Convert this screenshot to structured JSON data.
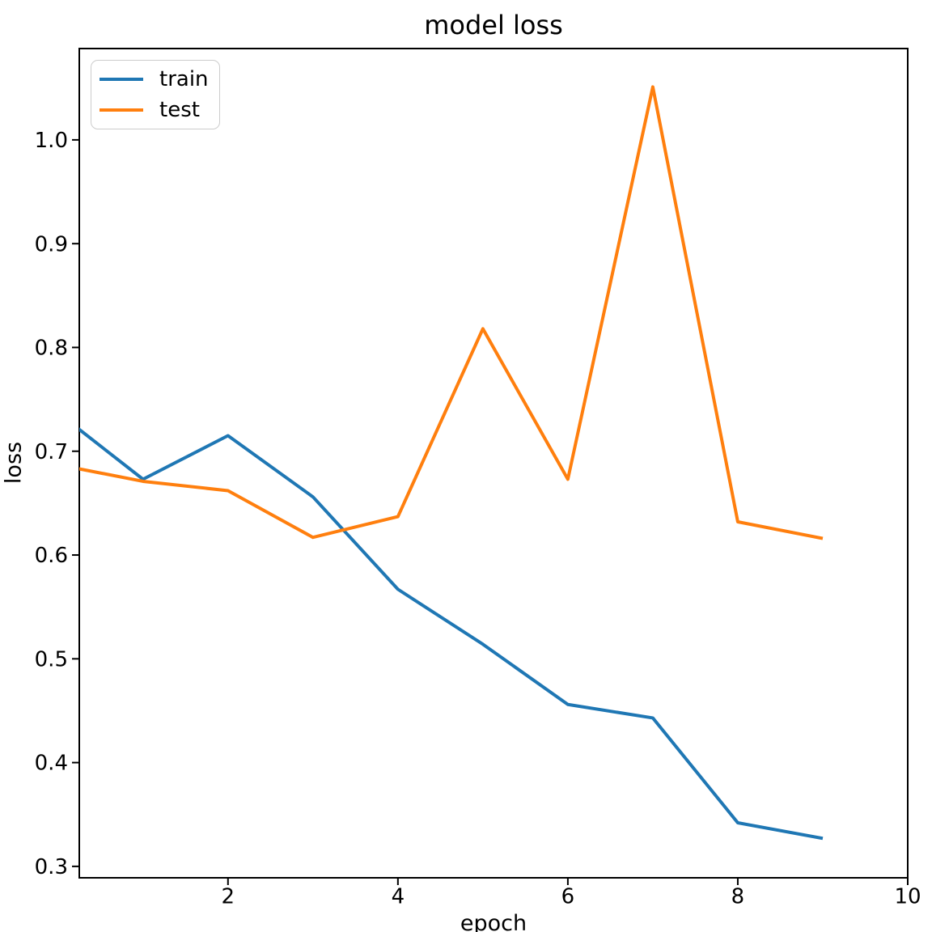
{
  "figure": {
    "title": "model loss"
  },
  "chart_data": {
    "type": "line",
    "title": "model loss",
    "xlabel": "epoch",
    "ylabel": "loss",
    "x": [
      0,
      1,
      2,
      3,
      4,
      5,
      6,
      7,
      8,
      9
    ],
    "series": [
      {
        "name": "train",
        "color": "#1f77b4",
        "values": [
          0.737,
          0.673,
          0.715,
          0.656,
          0.567,
          0.514,
          0.456,
          0.443,
          0.342,
          0.327
        ]
      },
      {
        "name": "test",
        "color": "#ff7f0e",
        "values": [
          0.687,
          0.671,
          0.662,
          0.617,
          0.637,
          0.818,
          0.673,
          1.051,
          0.632,
          0.616
        ]
      }
    ],
    "xlim": [
      0.25,
      10
    ],
    "ylim": [
      0.289,
      1.088
    ],
    "xticks": [
      2,
      4,
      6,
      8,
      10
    ],
    "yticks": [
      0.3,
      0.4,
      0.5,
      0.6,
      0.7,
      0.8,
      0.9,
      1.0
    ],
    "grid": false,
    "legend_position": "upper left",
    "legend_entries": [
      "train",
      "test"
    ],
    "axis_color": "#000000"
  }
}
